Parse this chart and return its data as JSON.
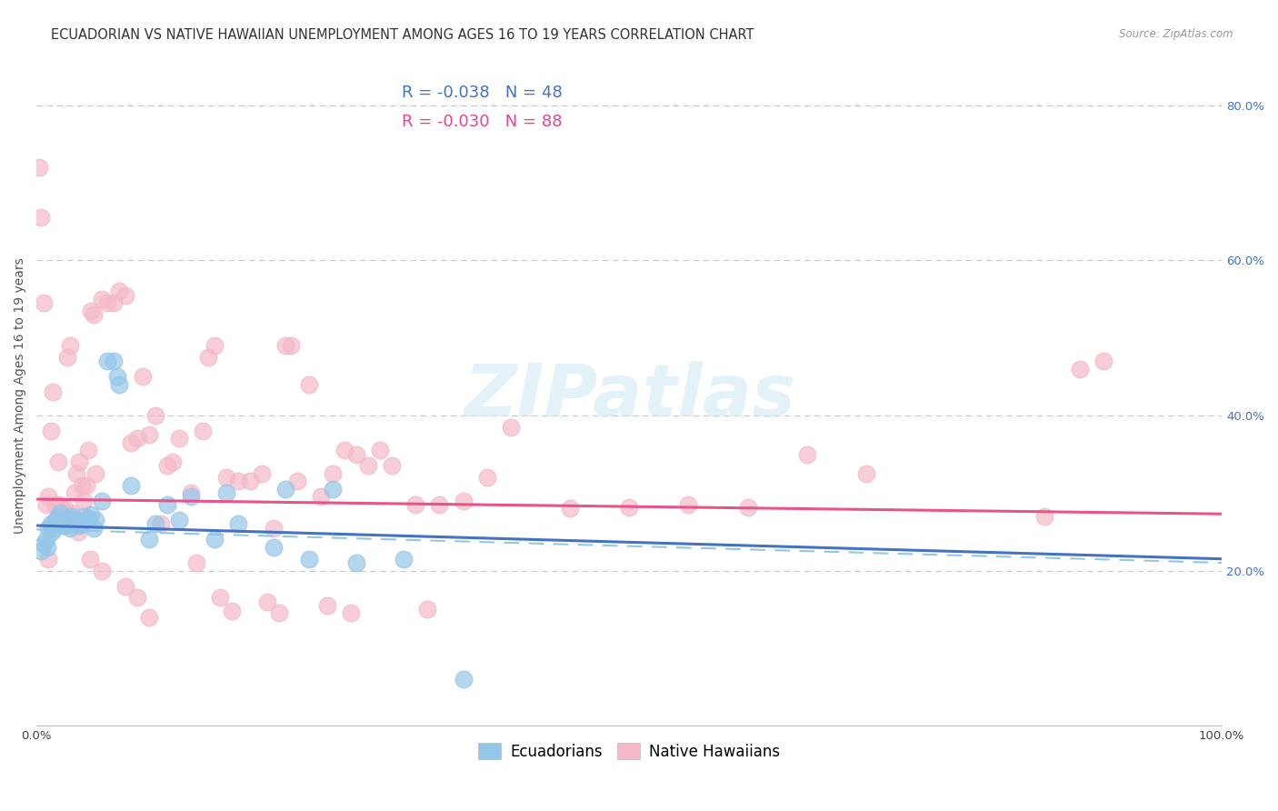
{
  "title": "ECUADORIAN VS NATIVE HAWAIIAN UNEMPLOYMENT AMONG AGES 16 TO 19 YEARS CORRELATION CHART",
  "source": "Source: ZipAtlas.com",
  "ylabel": "Unemployment Among Ages 16 to 19 years",
  "xlim": [
    0,
    1.0
  ],
  "ylim": [
    0,
    0.85
  ],
  "yticks_right": [
    0.2,
    0.4,
    0.6,
    0.8
  ],
  "ytick_right_labels": [
    "20.0%",
    "40.0%",
    "60.0%",
    "80.0%"
  ],
  "legend_r1": "-0.038",
  "legend_n1": "48",
  "legend_r2": "-0.030",
  "legend_n2": "88",
  "color_blue": "#94C6E7",
  "color_blue_dark": "#4472C4",
  "color_pink": "#F4B8C8",
  "color_pink_dark": "#E8538A",
  "trend_blue_y0": 0.258,
  "trend_blue_y1": 0.215,
  "trend_pink_y0": 0.292,
  "trend_pink_y1": 0.273,
  "blue_scatter_x": [
    0.004,
    0.006,
    0.008,
    0.009,
    0.01,
    0.012,
    0.013,
    0.015,
    0.016,
    0.018,
    0.02,
    0.022,
    0.024,
    0.025,
    0.027,
    0.028,
    0.03,
    0.032,
    0.034,
    0.036,
    0.038,
    0.04,
    0.042,
    0.044,
    0.046,
    0.048,
    0.05,
    0.055,
    0.06,
    0.065,
    0.068,
    0.07,
    0.08,
    0.095,
    0.1,
    0.11,
    0.12,
    0.13,
    0.15,
    0.16,
    0.17,
    0.2,
    0.21,
    0.23,
    0.25,
    0.27,
    0.31,
    0.36
  ],
  "blue_scatter_y": [
    0.225,
    0.235,
    0.24,
    0.23,
    0.255,
    0.26,
    0.25,
    0.255,
    0.265,
    0.27,
    0.275,
    0.265,
    0.258,
    0.26,
    0.268,
    0.255,
    0.27,
    0.265,
    0.26,
    0.258,
    0.26,
    0.27,
    0.265,
    0.268,
    0.272,
    0.255,
    0.265,
    0.29,
    0.47,
    0.47,
    0.45,
    0.44,
    0.31,
    0.24,
    0.26,
    0.285,
    0.265,
    0.295,
    0.24,
    0.3,
    0.26,
    0.23,
    0.305,
    0.215,
    0.305,
    0.21,
    0.215,
    0.06
  ],
  "pink_scatter_x": [
    0.002,
    0.004,
    0.006,
    0.008,
    0.01,
    0.012,
    0.014,
    0.016,
    0.018,
    0.02,
    0.022,
    0.024,
    0.026,
    0.028,
    0.03,
    0.032,
    0.034,
    0.036,
    0.038,
    0.04,
    0.042,
    0.044,
    0.046,
    0.048,
    0.05,
    0.055,
    0.06,
    0.065,
    0.07,
    0.075,
    0.08,
    0.085,
    0.09,
    0.095,
    0.1,
    0.11,
    0.115,
    0.12,
    0.13,
    0.14,
    0.145,
    0.15,
    0.16,
    0.17,
    0.18,
    0.19,
    0.2,
    0.21,
    0.215,
    0.22,
    0.23,
    0.24,
    0.25,
    0.26,
    0.27,
    0.28,
    0.29,
    0.3,
    0.32,
    0.34,
    0.36,
    0.38,
    0.4,
    0.45,
    0.5,
    0.55,
    0.6,
    0.65,
    0.7,
    0.85,
    0.88,
    0.9,
    0.01,
    0.035,
    0.045,
    0.055,
    0.075,
    0.085,
    0.095,
    0.105,
    0.135,
    0.155,
    0.165,
    0.195,
    0.205,
    0.245,
    0.265,
    0.33
  ],
  "pink_scatter_y": [
    0.72,
    0.655,
    0.545,
    0.285,
    0.295,
    0.38,
    0.43,
    0.285,
    0.34,
    0.285,
    0.265,
    0.28,
    0.475,
    0.49,
    0.275,
    0.3,
    0.325,
    0.34,
    0.31,
    0.29,
    0.31,
    0.355,
    0.535,
    0.53,
    0.325,
    0.55,
    0.545,
    0.545,
    0.56,
    0.555,
    0.365,
    0.37,
    0.45,
    0.375,
    0.4,
    0.335,
    0.34,
    0.37,
    0.3,
    0.38,
    0.475,
    0.49,
    0.32,
    0.315,
    0.315,
    0.325,
    0.255,
    0.49,
    0.49,
    0.315,
    0.44,
    0.295,
    0.325,
    0.355,
    0.35,
    0.335,
    0.355,
    0.335,
    0.285,
    0.285,
    0.29,
    0.32,
    0.385,
    0.28,
    0.282,
    0.285,
    0.282,
    0.35,
    0.325,
    0.27,
    0.46,
    0.47,
    0.215,
    0.25,
    0.215,
    0.2,
    0.18,
    0.165,
    0.14,
    0.26,
    0.21,
    0.165,
    0.148,
    0.16,
    0.145,
    0.155,
    0.145,
    0.15
  ],
  "watermark": "ZIPatlas",
  "background_color": "#ffffff",
  "grid_color": "#c8c8c8",
  "title_fontsize": 10.5,
  "axis_label_fontsize": 10,
  "tick_fontsize": 9.5
}
